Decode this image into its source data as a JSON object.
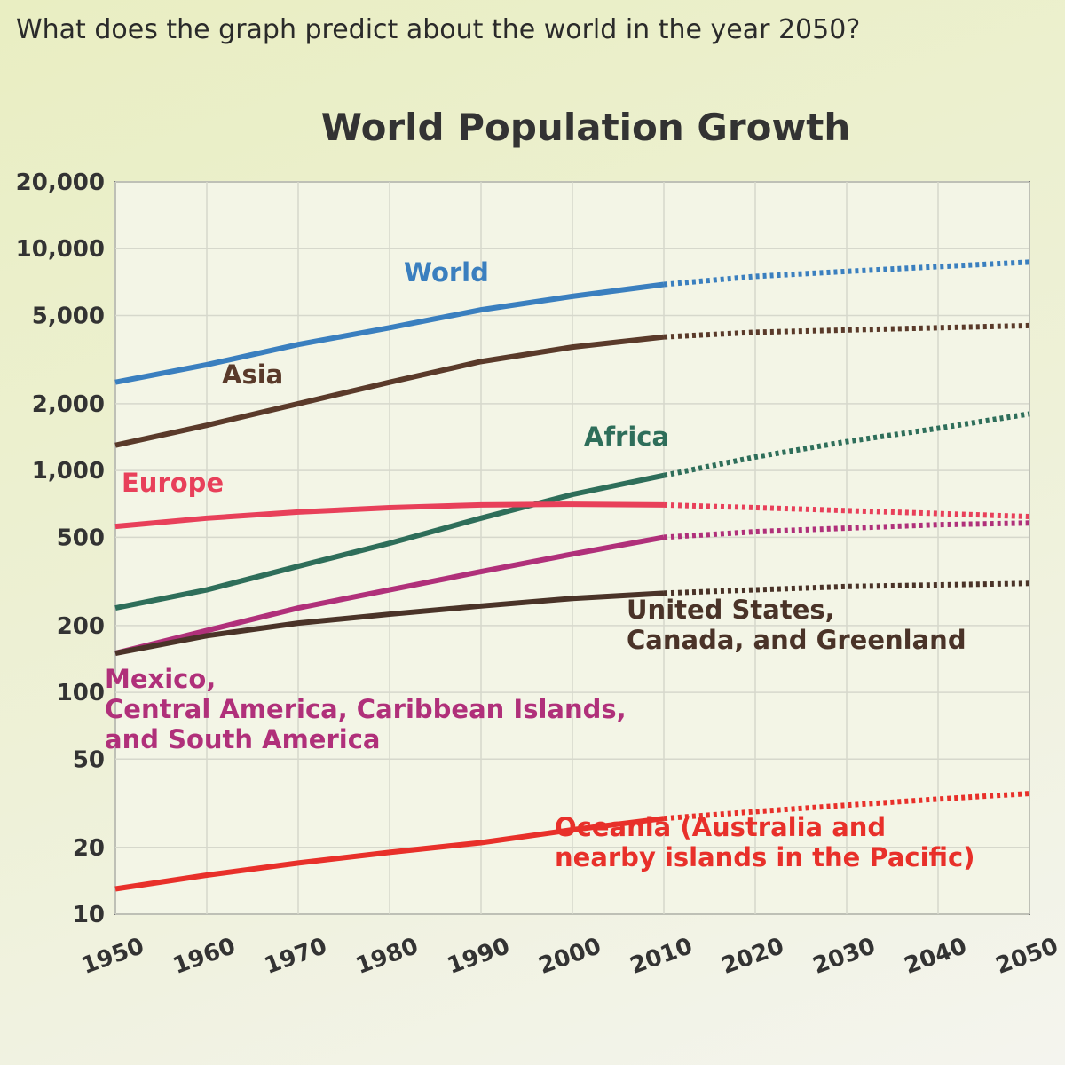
{
  "question": "What does the graph predict about the world in the year 2050?",
  "chart_data": {
    "type": "line",
    "title": "World Population Growth",
    "x": [
      1950,
      1960,
      1970,
      1980,
      1990,
      2000,
      2010,
      2020,
      2030,
      2040,
      2050
    ],
    "xlim": [
      1950,
      2050
    ],
    "xticks": [
      1950,
      1960,
      1970,
      1980,
      1990,
      2000,
      2010,
      2020,
      2030,
      2040,
      2050
    ],
    "ylim": [
      10,
      20000
    ],
    "log_y": true,
    "grid": true,
    "dotted_from": 2010,
    "yticks": [
      10,
      20,
      50,
      100,
      200,
      {
        "value": 500,
        "label": "500"
      },
      {
        "value": 1000,
        "label": "1,000"
      },
      {
        "value": 2000,
        "label": "2,000"
      },
      {
        "value": 5000,
        "label": "5,000"
      },
      {
        "value": 10000,
        "label": "10,000"
      },
      {
        "value": 20000,
        "label": "20,000"
      }
    ],
    "series": [
      {
        "name": "World",
        "color": "#3a7fbf",
        "values": [
          2500,
          3000,
          3700,
          4400,
          5300,
          6100,
          6900,
          7500,
          7900,
          8300,
          8700
        ]
      },
      {
        "name": "Asia",
        "color": "#5a3a2a",
        "values": [
          1300,
          1600,
          2000,
          2500,
          3100,
          3600,
          4000,
          4200,
          4300,
          4400,
          4500
        ]
      },
      {
        "name": "Africa",
        "color": "#2e6e5a",
        "values": [
          240,
          290,
          370,
          470,
          610,
          780,
          950,
          1150,
          1350,
          1550,
          1800
        ]
      },
      {
        "name": "Europe",
        "color": "#e8405a",
        "values": [
          560,
          610,
          650,
          680,
          700,
          705,
          700,
          680,
          660,
          640,
          620
        ]
      },
      {
        "name": "Mexico,\nCentral America, Caribbean Islands,\nand South America",
        "color": "#b0307a",
        "values": [
          150,
          190,
          240,
          290,
          350,
          420,
          500,
          530,
          550,
          570,
          580
        ]
      },
      {
        "name": "United States,\nCanada, and Greenland",
        "color": "#4a3328",
        "values": [
          150,
          180,
          205,
          225,
          245,
          265,
          280,
          290,
          300,
          305,
          310
        ]
      },
      {
        "name": "Oceania (Australia and\nnearby islands in the Pacific)",
        "color": "#e8302a",
        "values": [
          13,
          15,
          17,
          19,
          21,
          24,
          27,
          29,
          31,
          33,
          35
        ]
      }
    ]
  }
}
